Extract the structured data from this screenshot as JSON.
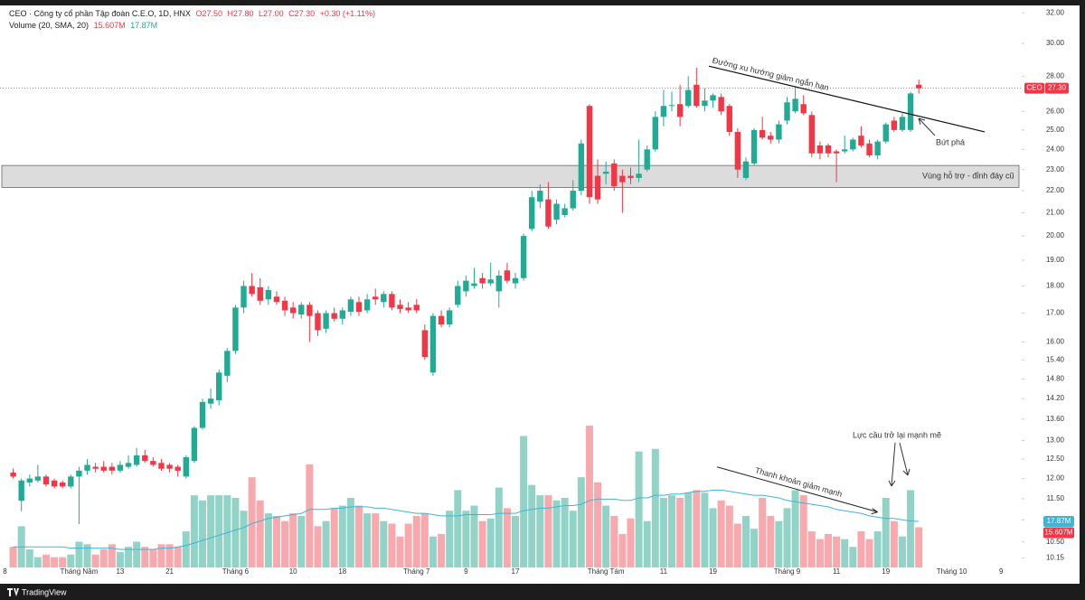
{
  "chart_data": {
    "type": "candlestick",
    "header": {
      "symbol": "CEO · Công ty cổ phần Tập đoàn C.E.O, 1D, HNX",
      "ohlc": [
        "O27.50",
        "H27.80",
        "L27.00",
        "C27.30",
        "+0.30 (+1.11%)"
      ]
    },
    "up_color": "#22ab94",
    "down_color": "#f23645",
    "log_scale": true,
    "ylim": [
      9.95,
      32.5
    ],
    "yticks": [
      {
        "value": 32,
        "label": "32.00"
      },
      {
        "value": 30,
        "label": "30.00"
      },
      {
        "value": 28,
        "label": "28.00"
      },
      {
        "value": 26,
        "label": "26.00"
      },
      {
        "value": 25,
        "label": "25.00"
      },
      {
        "value": 24,
        "label": "24.00"
      },
      {
        "value": 23,
        "label": "23.00"
      },
      {
        "value": 22,
        "label": "22.00"
      },
      {
        "value": 21,
        "label": "21.00"
      },
      {
        "value": 20,
        "label": "20.00"
      },
      {
        "value": 19,
        "label": "19.00"
      },
      {
        "value": 18,
        "label": "18.00"
      },
      {
        "value": 17,
        "label": "17.00"
      },
      {
        "value": 16,
        "label": "16.00"
      },
      {
        "value": 15.4,
        "label": "15.40"
      },
      {
        "value": 14.8,
        "label": "14.80"
      },
      {
        "value": 14.2,
        "label": "14.20"
      },
      {
        "value": 13.6,
        "label": "13.60"
      },
      {
        "value": 13,
        "label": "13.00"
      },
      {
        "value": 12.5,
        "label": "12.50"
      },
      {
        "value": 12,
        "label": "12.00"
      },
      {
        "value": 11.5,
        "label": "11.50"
      },
      {
        "value": 11,
        "label": "11.00"
      },
      {
        "value": 10.5,
        "label": "10.50"
      },
      {
        "value": 10.15,
        "label": "10.15"
      }
    ],
    "xlim": [
      -1.6,
      122.5
    ],
    "xticks": [
      {
        "value": -1,
        "label": "8"
      },
      {
        "value": 8,
        "label": "Tháng Năm"
      },
      {
        "value": 13,
        "label": "13"
      },
      {
        "value": 19,
        "label": "21"
      },
      {
        "value": 27,
        "label": "Tháng 6"
      },
      {
        "value": 34,
        "label": "10"
      },
      {
        "value": 40,
        "label": "18"
      },
      {
        "value": 49,
        "label": "Tháng 7"
      },
      {
        "value": 55,
        "label": "9"
      },
      {
        "value": 61,
        "label": "17"
      },
      {
        "value": 72,
        "label": "Tháng Tám"
      },
      {
        "value": 79,
        "label": "11"
      },
      {
        "value": 85,
        "label": "19"
      },
      {
        "value": 94,
        "label": "Tháng 9"
      },
      {
        "value": 100,
        "label": "11"
      },
      {
        "value": 106,
        "label": "19"
      },
      {
        "value": 114,
        "label": "Tháng 10"
      },
      {
        "value": 120,
        "label": "9"
      }
    ],
    "ohlc": [
      [
        12.15,
        12.25,
        12.0,
        12.05
      ],
      [
        11.45,
        12.0,
        11.2,
        11.95
      ],
      [
        11.9,
        12.1,
        11.8,
        12.0
      ],
      [
        11.95,
        12.35,
        11.9,
        12.05
      ],
      [
        12.05,
        12.1,
        11.8,
        11.85
      ],
      [
        11.95,
        12.0,
        11.75,
        11.8
      ],
      [
        11.9,
        11.95,
        11.75,
        11.8
      ],
      [
        11.8,
        12.1,
        11.75,
        12.05
      ],
      [
        12.05,
        12.3,
        10.9,
        12.2
      ],
      [
        12.2,
        12.5,
        12.1,
        12.35
      ],
      [
        12.3,
        12.4,
        12.15,
        12.25
      ],
      [
        12.3,
        12.45,
        12.15,
        12.2
      ],
      [
        12.3,
        12.4,
        12.1,
        12.2
      ],
      [
        12.2,
        12.45,
        12.15,
        12.35
      ],
      [
        12.3,
        12.6,
        12.25,
        12.4
      ],
      [
        12.35,
        12.8,
        12.3,
        12.6
      ],
      [
        12.6,
        12.75,
        12.4,
        12.45
      ],
      [
        12.45,
        12.55,
        12.3,
        12.35
      ],
      [
        12.4,
        12.5,
        12.2,
        12.25
      ],
      [
        12.35,
        12.4,
        12.15,
        12.25
      ],
      [
        12.3,
        12.35,
        12.05,
        12.2
      ],
      [
        12.05,
        12.6,
        12.0,
        12.55
      ],
      [
        12.45,
        13.4,
        12.4,
        13.35
      ],
      [
        13.35,
        14.2,
        13.3,
        14.1
      ],
      [
        14.05,
        14.5,
        13.9,
        14.2
      ],
      [
        14.15,
        15.1,
        14.0,
        15.0
      ],
      [
        14.9,
        15.8,
        14.7,
        15.7
      ],
      [
        15.7,
        17.3,
        15.6,
        17.2
      ],
      [
        17.2,
        18.2,
        17.0,
        18.0
      ],
      [
        18.0,
        18.5,
        17.6,
        17.7
      ],
      [
        17.95,
        18.3,
        17.3,
        17.45
      ],
      [
        17.5,
        18.0,
        17.3,
        17.85
      ],
      [
        17.6,
        17.8,
        17.3,
        17.4
      ],
      [
        17.45,
        17.6,
        16.9,
        17.1
      ],
      [
        17.2,
        17.4,
        16.8,
        17.0
      ],
      [
        16.95,
        17.4,
        16.8,
        17.3
      ],
      [
        17.3,
        17.4,
        16.0,
        16.9
      ],
      [
        17.0,
        17.1,
        16.2,
        16.4
      ],
      [
        16.45,
        17.1,
        16.3,
        17.0
      ],
      [
        17.0,
        17.2,
        16.7,
        16.8
      ],
      [
        16.8,
        17.2,
        16.6,
        17.1
      ],
      [
        17.05,
        17.6,
        16.9,
        17.5
      ],
      [
        17.4,
        17.6,
        16.9,
        17.05
      ],
      [
        17.1,
        17.7,
        17.0,
        17.5
      ],
      [
        17.6,
        17.9,
        17.3,
        17.5
      ],
      [
        17.4,
        17.8,
        17.2,
        17.7
      ],
      [
        17.7,
        17.8,
        17.1,
        17.2
      ],
      [
        17.3,
        17.5,
        17.0,
        17.15
      ],
      [
        17.2,
        17.4,
        17.0,
        17.1
      ],
      [
        17.3,
        17.5,
        17.0,
        17.1
      ],
      [
        16.4,
        16.6,
        15.4,
        15.5
      ],
      [
        15.0,
        17.0,
        14.9,
        16.9
      ],
      [
        16.9,
        17.1,
        16.5,
        16.6
      ],
      [
        16.6,
        17.2,
        16.5,
        17.1
      ],
      [
        17.3,
        18.2,
        17.2,
        18.0
      ],
      [
        17.8,
        18.4,
        17.6,
        18.2
      ],
      [
        18.0,
        18.7,
        17.9,
        18.1
      ],
      [
        18.3,
        18.5,
        17.9,
        18.1
      ],
      [
        18.1,
        18.9,
        18.0,
        18.25
      ],
      [
        17.8,
        18.6,
        17.2,
        18.4
      ],
      [
        18.6,
        18.9,
        18.1,
        18.2
      ],
      [
        18.1,
        18.5,
        17.9,
        18.3
      ],
      [
        18.3,
        20.1,
        18.2,
        20.0
      ],
      [
        20.3,
        22.0,
        20.2,
        21.7
      ],
      [
        21.5,
        22.3,
        21.2,
        22.0
      ],
      [
        21.6,
        22.4,
        20.3,
        20.4
      ],
      [
        20.7,
        21.6,
        20.5,
        21.4
      ],
      [
        20.9,
        21.4,
        20.8,
        21.2
      ],
      [
        21.2,
        22.5,
        21.1,
        22.0
      ],
      [
        22.0,
        24.5,
        21.8,
        24.3
      ],
      [
        26.3,
        26.4,
        21.4,
        21.7
      ],
      [
        22.7,
        23.5,
        21.4,
        21.6
      ],
      [
        22.8,
        23.4,
        22.3,
        22.9
      ],
      [
        23.3,
        23.5,
        22.0,
        22.2
      ],
      [
        22.7,
        23.0,
        21.0,
        22.4
      ],
      [
        22.7,
        23.1,
        22.3,
        22.6
      ],
      [
        22.6,
        24.5,
        22.4,
        22.8
      ],
      [
        23.0,
        24.2,
        22.9,
        24.0
      ],
      [
        24.0,
        26.0,
        23.9,
        25.7
      ],
      [
        25.7,
        27.2,
        25.2,
        26.3
      ],
      [
        26.3,
        27.1,
        26.0,
        26.35
      ],
      [
        26.4,
        27.5,
        25.2,
        25.7
      ],
      [
        26.3,
        28.0,
        26.2,
        27.2
      ],
      [
        27.5,
        28.5,
        26.2,
        26.3
      ],
      [
        26.3,
        27.3,
        26.0,
        26.6
      ],
      [
        26.6,
        27.0,
        26.2,
        26.9
      ],
      [
        26.8,
        27.0,
        25.8,
        26.0
      ],
      [
        26.3,
        26.4,
        24.7,
        24.9
      ],
      [
        24.9,
        25.1,
        22.6,
        23.0
      ],
      [
        22.6,
        23.6,
        22.5,
        23.4
      ],
      [
        23.3,
        25.1,
        23.2,
        25.0
      ],
      [
        25.0,
        25.7,
        24.5,
        24.6
      ],
      [
        24.7,
        24.9,
        24.3,
        24.5
      ],
      [
        24.5,
        25.5,
        24.3,
        25.3
      ],
      [
        25.5,
        26.8,
        25.3,
        26.5
      ],
      [
        26.0,
        27.4,
        25.9,
        26.7
      ],
      [
        26.4,
        26.9,
        25.8,
        25.9
      ],
      [
        25.8,
        26.0,
        23.6,
        23.8
      ],
      [
        24.2,
        24.4,
        23.5,
        23.8
      ],
      [
        24.2,
        24.3,
        23.6,
        23.8
      ],
      [
        23.9,
        24.0,
        22.4,
        23.8
      ],
      [
        23.9,
        24.7,
        23.8,
        24.0
      ],
      [
        24.0,
        24.6,
        23.9,
        24.5
      ],
      [
        24.7,
        25.2,
        24.1,
        24.2
      ],
      [
        24.3,
        24.5,
        23.6,
        23.7
      ],
      [
        23.7,
        24.5,
        23.5,
        24.4
      ],
      [
        24.4,
        25.4,
        24.3,
        25.3
      ],
      [
        25.5,
        25.7,
        24.9,
        25.0
      ],
      [
        25.0,
        25.9,
        24.9,
        25.7
      ],
      [
        25.0,
        27.1,
        24.9,
        27.0
      ],
      [
        27.5,
        27.8,
        27.0,
        27.3
      ]
    ],
    "last_price": {
      "symbol": "CEO",
      "value": 27.3,
      "label": "27.30"
    },
    "y2lim": [
      0,
      218
    ],
    "volume": {
      "name": "Volume (20, SMA, 20)",
      "up_color": "#92d3c8",
      "down_color": "#f7a9ad",
      "last_label": "15.607M",
      "values": [
        8,
        16,
        7,
        4,
        5,
        4,
        4,
        5,
        10,
        9,
        5,
        7,
        9,
        6,
        8,
        10,
        8,
        7,
        9,
        9,
        8,
        14,
        28,
        26,
        28,
        28,
        28,
        27,
        22,
        35,
        26,
        21,
        20,
        18,
        21,
        20,
        40,
        16,
        18,
        23,
        24,
        27,
        24,
        21,
        21,
        18,
        17,
        12,
        17,
        20,
        21,
        12,
        13,
        22,
        30,
        22,
        24,
        18,
        19,
        31,
        23,
        20,
        51,
        32,
        28,
        28,
        26,
        27,
        22,
        35,
        55,
        33,
        24,
        20,
        13,
        19,
        45,
        18,
        46,
        27,
        28,
        27,
        29,
        30,
        29,
        23,
        26,
        24,
        17,
        20,
        15,
        27,
        20,
        18,
        23,
        30,
        28,
        14,
        11,
        13,
        12,
        11,
        8,
        14,
        11,
        14,
        27,
        18,
        12,
        30,
        15.607
      ]
    },
    "volume_sma": {
      "color": "#3fb4d6",
      "last_label": "17.87M",
      "values": [
        8,
        8,
        8,
        8,
        8,
        8,
        8,
        7.5,
        7.5,
        7.5,
        7.5,
        7.5,
        7.5,
        7,
        7,
        7,
        7,
        7,
        7.5,
        7.5,
        8,
        8.5,
        9.5,
        10.5,
        11.5,
        12.5,
        13.5,
        14.5,
        15.5,
        17,
        18,
        19,
        19.5,
        20,
        20.5,
        21,
        22.5,
        22.5,
        22.5,
        23,
        23,
        23.5,
        23.5,
        23.5,
        23,
        23,
        22.5,
        22,
        21.5,
        21,
        21,
        20.5,
        20,
        20,
        20,
        20.5,
        20.5,
        20.5,
        20.5,
        21,
        21,
        21,
        22,
        22.5,
        23,
        23,
        23.5,
        24,
        24,
        24.5,
        26,
        26.5,
        26.5,
        26.5,
        26,
        26,
        27,
        27,
        28,
        28,
        28.5,
        28.5,
        29,
        29.5,
        29.5,
        30,
        30,
        29.5,
        29,
        28.5,
        28,
        28,
        27.5,
        27,
        26,
        25.5,
        25,
        24.5,
        24,
        23.5,
        22.5,
        22,
        21.5,
        21,
        20,
        19.5,
        19,
        19,
        18.5,
        18,
        17.87
      ]
    },
    "support_zone": {
      "label": "Vùng hỗ trợ - đỉnh đáy cũ",
      "range": [
        22.15,
        23.2
      ]
    },
    "trendline": {
      "label": "Đường xu hướng giảm ngắn hạn",
      "x": [
        84.5,
        118
      ],
      "y": [
        28.6,
        24.9
      ]
    },
    "volume_trend": {
      "label": "Thanh khoản giảm mạnh",
      "x": [
        85.5,
        105
      ],
      "y2": [
        39,
        21.5
      ]
    },
    "annotations": [
      "Bứt phá",
      "Lực cầu trở lại mạnh mẽ"
    ],
    "footer": "TradingView"
  }
}
